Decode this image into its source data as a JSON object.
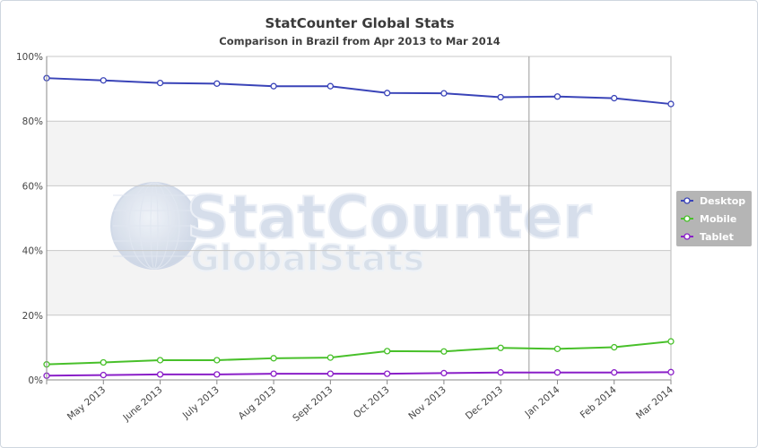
{
  "chart_data": {
    "type": "line",
    "title": "StatCounter Global Stats",
    "subtitle": "Comparison in Brazil from Apr 2013 to Mar 2014",
    "watermark": "StatCounter GlobalStats",
    "categories": [
      "Apr 2013",
      "May 2013",
      "June 2013",
      "July 2013",
      "Aug 2013",
      "Sept 2013",
      "Oct 2013",
      "Nov 2013",
      "Dec 2013",
      "Jan 2014",
      "Feb 2014",
      "Mar 2014"
    ],
    "x_tick_labels": [
      "",
      "May 2013",
      "June 2013",
      "July 2013",
      "Aug 2013",
      "Sept 2013",
      "Oct 2013",
      "Nov 2013",
      "Dec 2013",
      "Jan 2014",
      "Feb 2014",
      "Mar 2014"
    ],
    "y_ticks": [
      0,
      20,
      40,
      60,
      80,
      100
    ],
    "y_tick_labels": [
      "0%",
      "20%",
      "40%",
      "60%",
      "80%",
      "100%"
    ],
    "ylim": [
      0,
      100
    ],
    "grid": true,
    "legend_position": "right",
    "series": [
      {
        "name": "Desktop",
        "color": "#3a44b8",
        "values": [
          93.3,
          92.6,
          91.8,
          91.6,
          90.8,
          90.8,
          88.7,
          88.6,
          87.4,
          87.6,
          87.1,
          85.3
        ]
      },
      {
        "name": "Mobile",
        "color": "#48c02a",
        "values": [
          4.8,
          5.4,
          6.1,
          6.1,
          6.7,
          6.9,
          8.9,
          8.8,
          9.9,
          9.6,
          10.1,
          11.9
        ]
      },
      {
        "name": "Tablet",
        "color": "#8a1fc8",
        "values": [
          1.3,
          1.5,
          1.7,
          1.7,
          1.9,
          1.9,
          1.9,
          2.1,
          2.3,
          2.3,
          2.3,
          2.4
        ]
      }
    ]
  }
}
